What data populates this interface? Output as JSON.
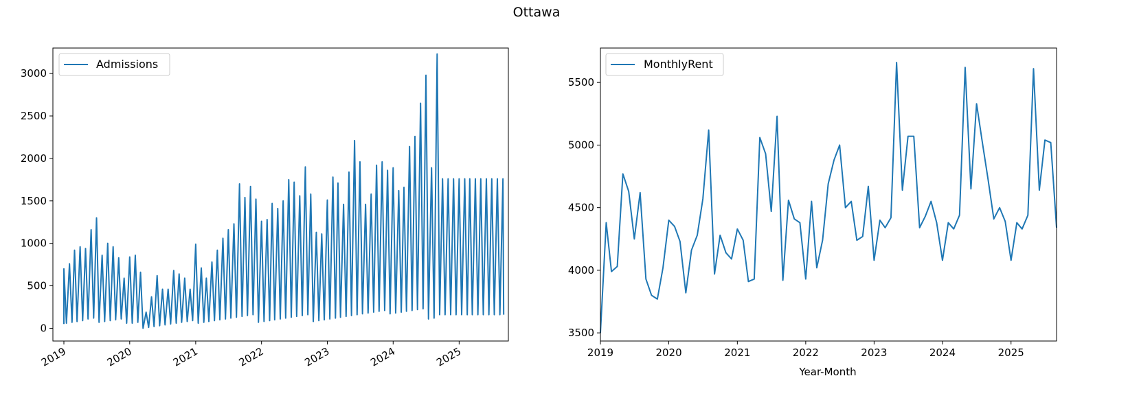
{
  "figure": {
    "title": "Ottawa"
  },
  "chart_data": [
    {
      "type": "line",
      "title": "",
      "xlabel": "",
      "ylabel": "",
      "x_axis": "date",
      "xlim": [
        "2018-11-01",
        "2025-10-01"
      ],
      "ylim": [
        -150,
        3300
      ],
      "xticks": [
        "2019",
        "2020",
        "2021",
        "2022",
        "2023",
        "2024",
        "2025"
      ],
      "yticks": [
        0,
        500,
        1000,
        1500,
        2000,
        2500,
        3000
      ],
      "legend": {
        "position": "top-left",
        "entries": [
          "Admissions"
        ]
      },
      "grid": false,
      "color": "#1f77b4",
      "series": [
        {
          "name": "Admissions",
          "points": [
            [
              "2019-01-01",
              50
            ],
            [
              "2019-01-01",
              700
            ],
            [
              "2019-01-15",
              60
            ],
            [
              "2019-02-01",
              760
            ],
            [
              "2019-02-15",
              70
            ],
            [
              "2019-03-01",
              920
            ],
            [
              "2019-03-15",
              80
            ],
            [
              "2019-04-01",
              960
            ],
            [
              "2019-04-15",
              90
            ],
            [
              "2019-05-01",
              940
            ],
            [
              "2019-05-15",
              110
            ],
            [
              "2019-06-01",
              1160
            ],
            [
              "2019-06-15",
              120
            ],
            [
              "2019-07-01",
              1300
            ],
            [
              "2019-07-15",
              70
            ],
            [
              "2019-08-01",
              860
            ],
            [
              "2019-08-15",
              80
            ],
            [
              "2019-09-01",
              1000
            ],
            [
              "2019-09-15",
              90
            ],
            [
              "2019-10-01",
              960
            ],
            [
              "2019-10-15",
              100
            ],
            [
              "2019-11-01",
              830
            ],
            [
              "2019-11-15",
              110
            ],
            [
              "2019-12-01",
              590
            ],
            [
              "2019-12-15",
              60
            ],
            [
              "2020-01-01",
              840
            ],
            [
              "2020-01-15",
              60
            ],
            [
              "2020-02-01",
              860
            ],
            [
              "2020-02-15",
              70
            ],
            [
              "2020-03-01",
              660
            ],
            [
              "2020-03-15",
              0
            ],
            [
              "2020-04-01",
              190
            ],
            [
              "2020-04-15",
              10
            ],
            [
              "2020-05-01",
              370
            ],
            [
              "2020-05-15",
              20
            ],
            [
              "2020-06-01",
              620
            ],
            [
              "2020-06-15",
              30
            ],
            [
              "2020-07-01",
              460
            ],
            [
              "2020-07-15",
              40
            ],
            [
              "2020-08-01",
              460
            ],
            [
              "2020-08-15",
              50
            ],
            [
              "2020-09-01",
              680
            ],
            [
              "2020-09-15",
              60
            ],
            [
              "2020-10-01",
              640
            ],
            [
              "2020-10-15",
              70
            ],
            [
              "2020-11-01",
              590
            ],
            [
              "2020-11-15",
              80
            ],
            [
              "2020-12-01",
              460
            ],
            [
              "2020-12-15",
              90
            ],
            [
              "2021-01-01",
              990
            ],
            [
              "2021-01-15",
              60
            ],
            [
              "2021-02-01",
              710
            ],
            [
              "2021-02-15",
              70
            ],
            [
              "2021-03-01",
              590
            ],
            [
              "2021-03-15",
              80
            ],
            [
              "2021-04-01",
              780
            ],
            [
              "2021-04-15",
              90
            ],
            [
              "2021-05-01",
              920
            ],
            [
              "2021-05-15",
              100
            ],
            [
              "2021-06-01",
              1060
            ],
            [
              "2021-06-15",
              110
            ],
            [
              "2021-07-01",
              1160
            ],
            [
              "2021-07-15",
              120
            ],
            [
              "2021-08-01",
              1230
            ],
            [
              "2021-08-15",
              130
            ],
            [
              "2021-09-01",
              1700
            ],
            [
              "2021-09-15",
              140
            ],
            [
              "2021-10-01",
              1540
            ],
            [
              "2021-10-15",
              150
            ],
            [
              "2021-11-01",
              1670
            ],
            [
              "2021-11-15",
              160
            ],
            [
              "2021-12-01",
              1520
            ],
            [
              "2021-12-15",
              70
            ],
            [
              "2022-01-01",
              1260
            ],
            [
              "2022-01-15",
              80
            ],
            [
              "2022-02-01",
              1280
            ],
            [
              "2022-02-15",
              90
            ],
            [
              "2022-03-01",
              1470
            ],
            [
              "2022-03-15",
              100
            ],
            [
              "2022-04-01",
              1410
            ],
            [
              "2022-04-15",
              110
            ],
            [
              "2022-05-01",
              1500
            ],
            [
              "2022-05-15",
              120
            ],
            [
              "2022-06-01",
              1750
            ],
            [
              "2022-06-15",
              130
            ],
            [
              "2022-07-01",
              1720
            ],
            [
              "2022-07-15",
              140
            ],
            [
              "2022-08-01",
              1560
            ],
            [
              "2022-08-15",
              150
            ],
            [
              "2022-09-01",
              1900
            ],
            [
              "2022-09-15",
              160
            ],
            [
              "2022-10-01",
              1580
            ],
            [
              "2022-10-15",
              80
            ],
            [
              "2022-11-01",
              1130
            ],
            [
              "2022-11-15",
              90
            ],
            [
              "2022-12-01",
              1110
            ],
            [
              "2022-12-15",
              100
            ],
            [
              "2023-01-01",
              1510
            ],
            [
              "2023-01-15",
              110
            ],
            [
              "2023-02-01",
              1780
            ],
            [
              "2023-02-15",
              120
            ],
            [
              "2023-03-01",
              1710
            ],
            [
              "2023-03-15",
              130
            ],
            [
              "2023-04-01",
              1460
            ],
            [
              "2023-04-15",
              140
            ],
            [
              "2023-05-01",
              1840
            ],
            [
              "2023-05-15",
              150
            ],
            [
              "2023-06-01",
              2210
            ],
            [
              "2023-06-15",
              160
            ],
            [
              "2023-07-01",
              1960
            ],
            [
              "2023-07-15",
              170
            ],
            [
              "2023-08-01",
              1460
            ],
            [
              "2023-08-15",
              180
            ],
            [
              "2023-09-01",
              1580
            ],
            [
              "2023-09-15",
              190
            ],
            [
              "2023-10-01",
              1920
            ],
            [
              "2023-10-15",
              200
            ],
            [
              "2023-11-01",
              1960
            ],
            [
              "2023-11-15",
              210
            ],
            [
              "2023-12-01",
              1860
            ],
            [
              "2023-12-15",
              170
            ],
            [
              "2024-01-01",
              1890
            ],
            [
              "2024-01-15",
              180
            ],
            [
              "2024-02-01",
              1620
            ],
            [
              "2024-02-15",
              190
            ],
            [
              "2024-03-01",
              1660
            ],
            [
              "2024-03-15",
              200
            ],
            [
              "2024-04-01",
              2140
            ],
            [
              "2024-04-15",
              210
            ],
            [
              "2024-05-01",
              2260
            ],
            [
              "2024-05-15",
              220
            ],
            [
              "2024-06-01",
              2650
            ],
            [
              "2024-06-15",
              230
            ],
            [
              "2024-07-01",
              2980
            ],
            [
              "2024-07-15",
              110
            ],
            [
              "2024-08-01",
              1890
            ],
            [
              "2024-08-15",
              120
            ],
            [
              "2024-09-01",
              3230
            ],
            [
              "2024-09-15",
              160
            ],
            [
              "2024-10-01",
              1760
            ],
            [
              "2024-10-15",
              160
            ],
            [
              "2024-11-01",
              1760
            ],
            [
              "2024-11-15",
              160
            ],
            [
              "2024-12-01",
              1760
            ],
            [
              "2024-12-15",
              160
            ],
            [
              "2025-01-01",
              1760
            ],
            [
              "2025-01-15",
              160
            ],
            [
              "2025-02-01",
              1760
            ],
            [
              "2025-02-15",
              160
            ],
            [
              "2025-03-01",
              1760
            ],
            [
              "2025-03-15",
              160
            ],
            [
              "2025-04-01",
              1760
            ],
            [
              "2025-04-15",
              160
            ],
            [
              "2025-05-01",
              1760
            ],
            [
              "2025-05-15",
              160
            ],
            [
              "2025-06-01",
              1760
            ],
            [
              "2025-06-15",
              160
            ],
            [
              "2025-07-01",
              1760
            ],
            [
              "2025-07-15",
              160
            ],
            [
              "2025-08-01",
              1760
            ],
            [
              "2025-08-15",
              160
            ],
            [
              "2025-09-01",
              1760
            ],
            [
              "2025-09-05",
              160
            ]
          ]
        }
      ]
    },
    {
      "type": "line",
      "title": "",
      "xlabel": "Year-Month",
      "ylabel": "",
      "x_axis": "date",
      "xlim": [
        "2019-01-01",
        "2025-09-01"
      ],
      "ylim": [
        3435,
        5775
      ],
      "xticks": [
        "2019",
        "2020",
        "2021",
        "2022",
        "2023",
        "2024",
        "2025"
      ],
      "yticks": [
        3500,
        4000,
        4500,
        5000,
        5500
      ],
      "legend": {
        "position": "top-left",
        "entries": [
          "MonthlyRent"
        ]
      },
      "grid": false,
      "color": "#1f77b4",
      "series": [
        {
          "name": "MonthlyRent",
          "points": [
            [
              "2019-01-01",
              3500
            ],
            [
              "2019-02-01",
              4380
            ],
            [
              "2019-03-01",
              3990
            ],
            [
              "2019-04-01",
              4030
            ],
            [
              "2019-05-01",
              4770
            ],
            [
              "2019-06-01",
              4630
            ],
            [
              "2019-07-01",
              4250
            ],
            [
              "2019-08-01",
              4620
            ],
            [
              "2019-09-01",
              3930
            ],
            [
              "2019-10-01",
              3800
            ],
            [
              "2019-11-01",
              3770
            ],
            [
              "2019-12-01",
              4020
            ],
            [
              "2020-01-01",
              4400
            ],
            [
              "2020-02-01",
              4350
            ],
            [
              "2020-03-01",
              4230
            ],
            [
              "2020-04-01",
              3820
            ],
            [
              "2020-05-01",
              4160
            ],
            [
              "2020-06-01",
              4280
            ],
            [
              "2020-07-01",
              4570
            ],
            [
              "2020-08-01",
              5120
            ],
            [
              "2020-09-01",
              3970
            ],
            [
              "2020-10-01",
              4280
            ],
            [
              "2020-11-01",
              4140
            ],
            [
              "2020-12-01",
              4090
            ],
            [
              "2021-01-01",
              4330
            ],
            [
              "2021-02-01",
              4240
            ],
            [
              "2021-03-01",
              3910
            ],
            [
              "2021-04-01",
              3930
            ],
            [
              "2021-05-01",
              5060
            ],
            [
              "2021-06-01",
              4930
            ],
            [
              "2021-07-01",
              4470
            ],
            [
              "2021-08-01",
              5230
            ],
            [
              "2021-09-01",
              3920
            ],
            [
              "2021-10-01",
              4560
            ],
            [
              "2021-11-01",
              4410
            ],
            [
              "2021-12-01",
              4380
            ],
            [
              "2022-01-01",
              3930
            ],
            [
              "2022-02-01",
              4550
            ],
            [
              "2022-03-01",
              4020
            ],
            [
              "2022-04-01",
              4240
            ],
            [
              "2022-05-01",
              4690
            ],
            [
              "2022-06-01",
              4880
            ],
            [
              "2022-07-01",
              5000
            ],
            [
              "2022-08-01",
              4500
            ],
            [
              "2022-09-01",
              4550
            ],
            [
              "2022-10-01",
              4240
            ],
            [
              "2022-11-01",
              4270
            ],
            [
              "2022-12-01",
              4670
            ],
            [
              "2023-01-01",
              4080
            ],
            [
              "2023-02-01",
              4400
            ],
            [
              "2023-03-01",
              4340
            ],
            [
              "2023-04-01",
              4420
            ],
            [
              "2023-05-01",
              5660
            ],
            [
              "2023-06-01",
              4640
            ],
            [
              "2023-07-01",
              5070
            ],
            [
              "2023-08-01",
              5070
            ],
            [
              "2023-09-01",
              4340
            ],
            [
              "2023-10-01",
              4430
            ],
            [
              "2023-11-01",
              4550
            ],
            [
              "2023-12-01",
              4380
            ],
            [
              "2024-01-01",
              4080
            ],
            [
              "2024-02-01",
              4380
            ],
            [
              "2024-03-01",
              4330
            ],
            [
              "2024-04-01",
              4440
            ],
            [
              "2024-05-01",
              5620
            ],
            [
              "2024-06-01",
              4650
            ],
            [
              "2024-07-01",
              5330
            ],
            [
              "2024-08-01",
              5020
            ],
            [
              "2024-09-01",
              4720
            ],
            [
              "2024-10-01",
              4410
            ],
            [
              "2024-11-01",
              4500
            ],
            [
              "2024-12-01",
              4390
            ],
            [
              "2025-01-01",
              4080
            ],
            [
              "2025-02-01",
              4380
            ],
            [
              "2025-03-01",
              4330
            ],
            [
              "2025-04-01",
              4440
            ],
            [
              "2025-05-01",
              5610
            ],
            [
              "2025-06-01",
              4640
            ],
            [
              "2025-07-01",
              5040
            ],
            [
              "2025-08-01",
              5020
            ],
            [
              "2025-09-01",
              4340
            ]
          ]
        }
      ]
    }
  ]
}
